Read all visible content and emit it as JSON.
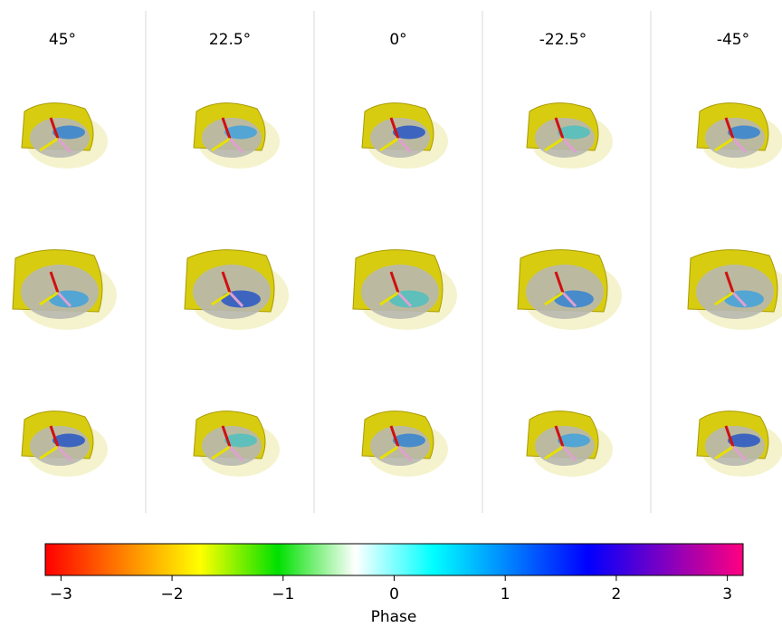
{
  "chart_data": {
    "type": "colorbar",
    "column_titles": [
      "45°",
      "22.5°",
      "0°",
      "-22.5°",
      "-45°"
    ],
    "colorbar_label": "Phase",
    "xlim": [
      -3.14159,
      3.14159
    ],
    "xticks": [
      {
        "value": -3,
        "label": "−3"
      },
      {
        "value": -2,
        "label": "−2"
      },
      {
        "value": -1,
        "label": "−1"
      },
      0,
      1,
      2,
      3
    ],
    "colormap": [
      "#ff0000",
      "#ff8000",
      "#ffff00",
      "#00e000",
      "#ffffff",
      "#00ffff",
      "#0080ff",
      "#0000ff",
      "#8000c0",
      "#ff0080"
    ]
  }
}
